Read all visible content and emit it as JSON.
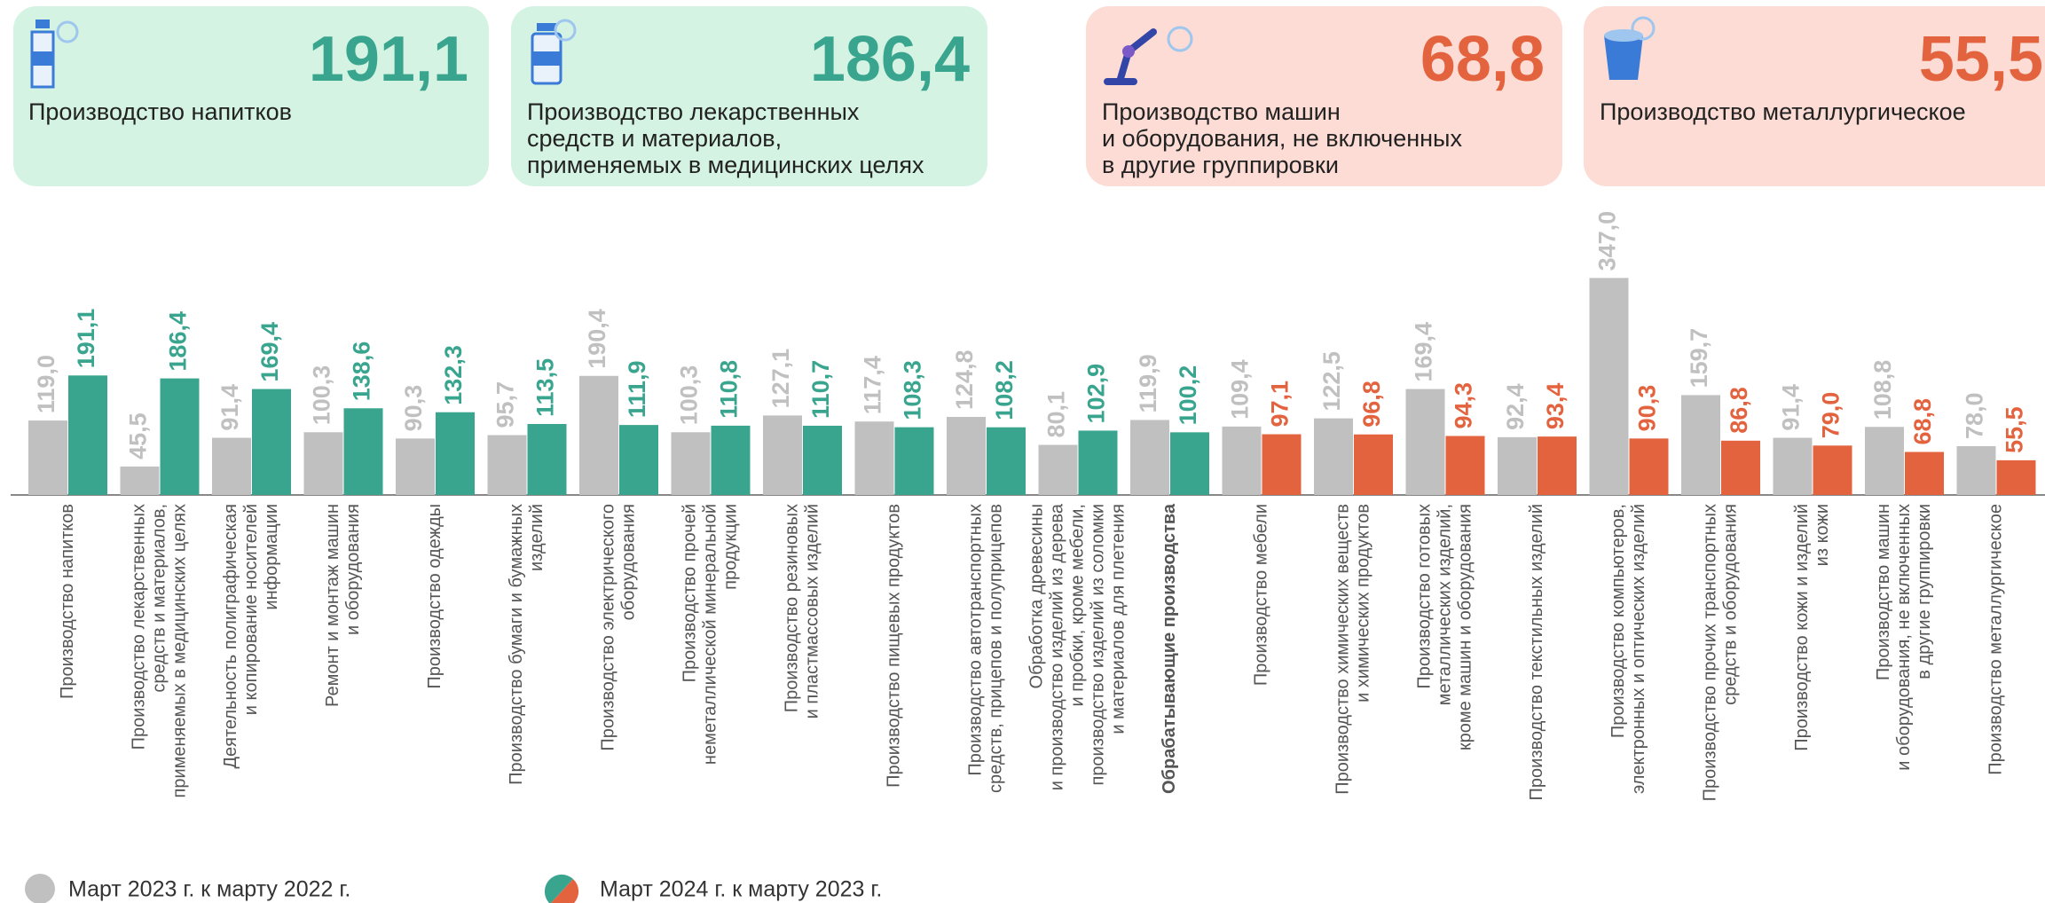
{
  "cards": [
    {
      "value": "191,1",
      "lines": [
        "Производство напитков"
      ]
    },
    {
      "value": "186,4",
      "lines": [
        "Производство лекарственных",
        "средств и материалов,",
        "применяемых в медицинских целях"
      ]
    },
    {
      "value": "68,8",
      "lines": [
        "Производство машин",
        "и оборудования, не включенных",
        "в другие группировки"
      ]
    },
    {
      "value": "55,5",
      "lines": [
        "Производство металлургическое"
      ]
    }
  ],
  "chart_data": {
    "type": "bar",
    "categories": [
      [
        "Производство напитков"
      ],
      [
        "Производство лекарственных",
        "средств и материалов,",
        "применяемых в медицинских целях"
      ],
      [
        "Деятельность полиграфическая",
        "и копирование носителей",
        "информации"
      ],
      [
        "Ремонт и монтаж машин",
        "и оборудования"
      ],
      [
        "Производство одежды"
      ],
      [
        "Производство бумаги и бумажных",
        "изделий"
      ],
      [
        "Производство электрического",
        "оборудования"
      ],
      [
        "Производство прочей",
        "неметаллической минеральной",
        "продукции"
      ],
      [
        "Производство резиновых",
        "и пластмассовых изделий"
      ],
      [
        "Производство пищевых продуктов"
      ],
      [
        "Производство автотранспортных",
        "средств, прицепов и полуприцепов"
      ],
      [
        "Обработка древесины",
        "и производство изделий из дерева",
        "и пробки, кроме мебели,",
        "производство изделий из соломки",
        "и материалов для плетения"
      ],
      [
        "Обрабатывающие производства"
      ],
      [
        "Производство мебели"
      ],
      [
        "Производство химических веществ",
        "и химических продуктов"
      ],
      [
        "Производство готовых",
        "металлических изделий,",
        "кроме машин и оборудования"
      ],
      [
        "Производство текстильных изделий"
      ],
      [
        "Производство компьютеров,",
        "электронных и оптических изделий"
      ],
      [
        "Производство прочих транспортных",
        "средств и оборудования"
      ],
      [
        "Производство кожи и изделий",
        "из кожи"
      ],
      [
        "Производство машин",
        "и оборудования, не включенных",
        "в другие группировки"
      ],
      [
        "Производство металлургическое"
      ]
    ],
    "series": [
      {
        "name": "Март 2023 г. к марту 2022 г.",
        "color": "#c0c0c0",
        "values": [
          119.0,
          45.5,
          91.4,
          100.3,
          90.3,
          95.7,
          190.4,
          100.3,
          127.1,
          117.4,
          124.8,
          80.1,
          119.9,
          109.4,
          122.5,
          169.4,
          92.4,
          347.0,
          159.7,
          91.4,
          108.8,
          78.0
        ],
        "value_labels": [
          "119,0",
          "45,5",
          "91,4",
          "100,3",
          "90,3",
          "95,7",
          "190,4",
          "100,3",
          "127,1",
          "117,4",
          "124,8",
          "80,1",
          "119,9",
          "109,4",
          "122,5",
          "169,4",
          "92,4",
          "347,0",
          "159,7",
          "91,4",
          "108,8",
          "78,0"
        ]
      },
      {
        "name": "Март 2024 г. к марту 2023 г.",
        "colors": [
          "#3aa58f",
          "#3aa58f",
          "#3aa58f",
          "#3aa58f",
          "#3aa58f",
          "#3aa58f",
          "#3aa58f",
          "#3aa58f",
          "#3aa58f",
          "#3aa58f",
          "#3aa58f",
          "#3aa58f",
          "#3aa58f",
          "#e4633f",
          "#e4633f",
          "#e4633f",
          "#e4633f",
          "#e4633f",
          "#e4633f",
          "#e4633f",
          "#e4633f",
          "#e4633f"
        ],
        "values": [
          191.1,
          186.4,
          169.4,
          138.6,
          132.3,
          113.5,
          111.9,
          110.8,
          110.7,
          108.3,
          108.2,
          102.9,
          100.2,
          97.1,
          96.8,
          94.3,
          93.4,
          90.3,
          86.8,
          79.0,
          68.8,
          55.5
        ],
        "value_labels": [
          "191,1",
          "186,4",
          "169,4",
          "138,6",
          "132,3",
          "113,5",
          "111,9",
          "110,8",
          "110,7",
          "108,3",
          "108,2",
          "102,9",
          "100,2",
          "97,1",
          "96,8",
          "94,3",
          "93,4",
          "90,3",
          "86,8",
          "79,0",
          "68,8",
          "55,5"
        ]
      }
    ]
  }
}
